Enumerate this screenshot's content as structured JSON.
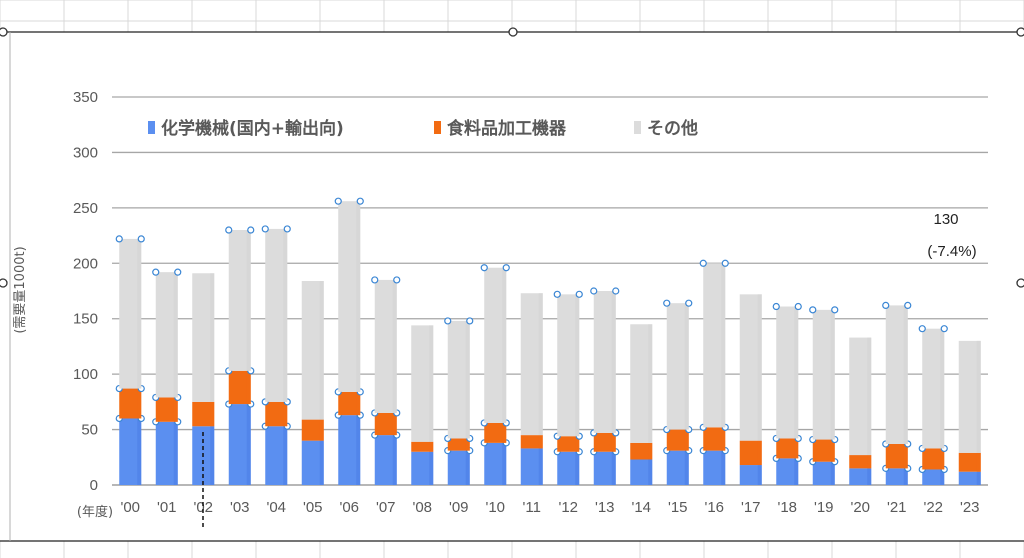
{
  "chart_data": {
    "type": "bar",
    "stacked": true,
    "title": "",
    "xlabel": "(年度)",
    "ylabel": "(需要量1000t)",
    "ylim": [
      0,
      350
    ],
    "yticks": [
      0,
      50,
      100,
      150,
      200,
      250,
      300,
      350
    ],
    "grid": true,
    "legend_position": "top",
    "categories": [
      "'00",
      "'01",
      "'02",
      "'03",
      "'04",
      "'05",
      "'06",
      "'07",
      "'08",
      "'09",
      "'10",
      "'11",
      "'12",
      "'13",
      "'14",
      "'15",
      "'16",
      "'17",
      "'18",
      "'19",
      "'20",
      "'21",
      "'22",
      "'23"
    ],
    "series": [
      {
        "name": "化学機械(国内+輸出向)",
        "color": "#5b8ff0",
        "values": [
          60,
          57,
          53,
          73,
          53,
          40,
          63,
          45,
          30,
          31,
          38,
          33,
          30,
          30,
          23,
          31,
          31,
          18,
          24,
          21,
          15,
          15,
          14,
          12
        ]
      },
      {
        "name": "食料品加工機器",
        "color": "#f26b12",
        "values": [
          27,
          22,
          22,
          30,
          22,
          19,
          21,
          20,
          9,
          11,
          18,
          12,
          14,
          17,
          15,
          19,
          21,
          22,
          18,
          20,
          12,
          22,
          19,
          17
        ]
      },
      {
        "name": "その他",
        "color": "#dcdcdc",
        "values": [
          135,
          113,
          116,
          127,
          156,
          125,
          172,
          120,
          105,
          106,
          140,
          128,
          128,
          128,
          107,
          114,
          148,
          132,
          119,
          117,
          106,
          125,
          108,
          101
        ]
      }
    ],
    "totals": [
      222,
      192,
      191,
      230,
      231,
      184,
      256,
      185,
      144,
      148,
      196,
      173,
      172,
      175,
      145,
      164,
      200,
      172,
      161,
      158,
      133,
      162,
      141,
      130
    ],
    "annotation": {
      "value": "130",
      "change": "(-7.4%)"
    }
  }
}
